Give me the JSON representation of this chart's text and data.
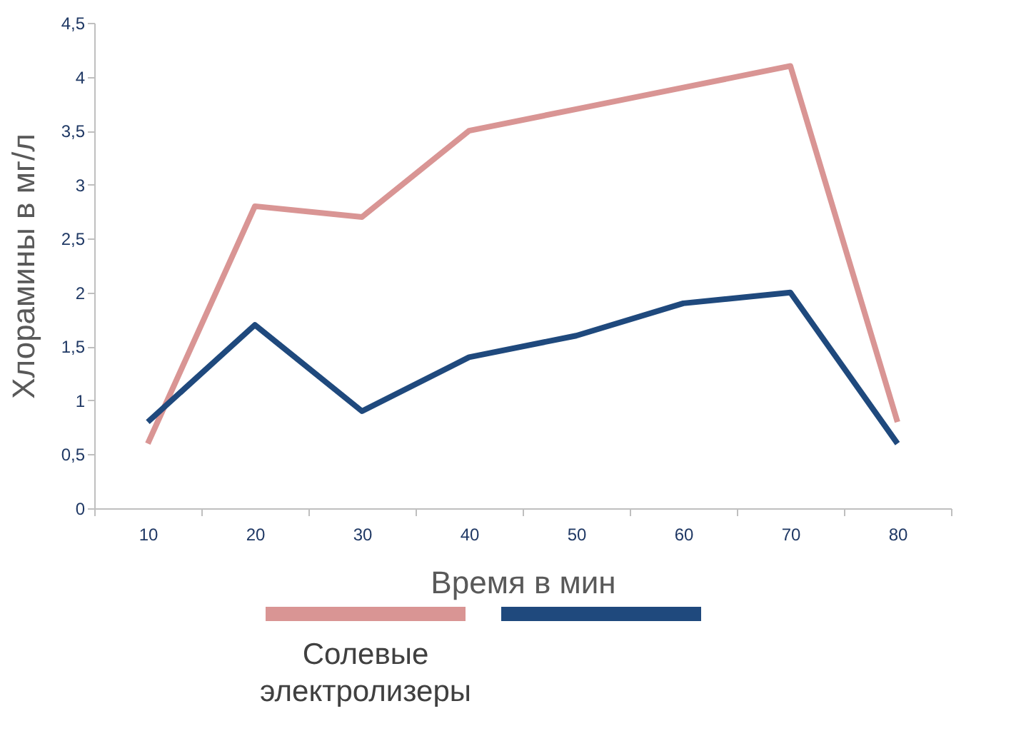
{
  "chart_data": {
    "type": "line",
    "xlabel": "Время в мин",
    "ylabel": "Хлорамины в мг/л",
    "categories": [
      "10",
      "20",
      "30",
      "40",
      "50",
      "60",
      "70",
      "80"
    ],
    "series": [
      {
        "name": "Солевые электролизеры",
        "color": "#d99594",
        "values": [
          0.6,
          2.8,
          2.7,
          3.5,
          3.7,
          3.9,
          4.1,
          0.8
        ]
      },
      {
        "color": "#1f497d",
        "values": [
          0.8,
          1.7,
          0.9,
          1.4,
          1.6,
          1.9,
          2.0,
          0.6
        ]
      }
    ],
    "ylim": [
      0,
      4.5
    ],
    "yticks": [
      0,
      {
        "value": 0.5,
        "label": "0,5"
      },
      1,
      {
        "value": 1.5,
        "label": "1,5"
      },
      2,
      {
        "value": 2.5,
        "label": "2,5"
      },
      3,
      {
        "value": 3.5,
        "label": "3,5"
      },
      4,
      {
        "value": 4.5,
        "label": "4,5"
      }
    ],
    "grid": false,
    "legend": "bottom",
    "marker": "none",
    "line_style": "solid"
  }
}
